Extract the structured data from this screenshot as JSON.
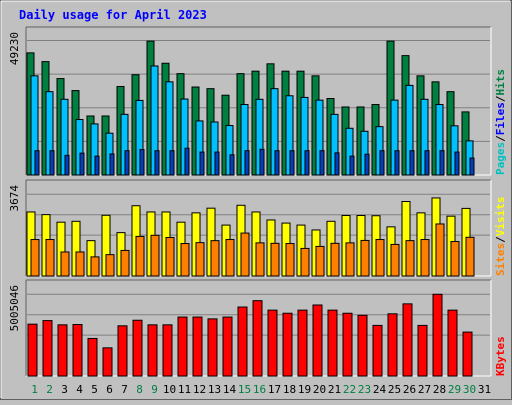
{
  "chart_data": {
    "type": "bar",
    "title": "Daily usage for April 2023",
    "categories": [
      "1",
      "2",
      "3",
      "4",
      "5",
      "6",
      "7",
      "8",
      "9",
      "10",
      "11",
      "12",
      "13",
      "14",
      "15",
      "16",
      "17",
      "18",
      "19",
      "20",
      "21",
      "22",
      "23",
      "24",
      "25",
      "26",
      "27",
      "28",
      "29",
      "30",
      "31"
    ],
    "weekend_days": [
      "1",
      "2",
      "8",
      "9",
      "15",
      "16",
      "22",
      "23",
      "29",
      "30"
    ],
    "panels": [
      {
        "name": "hits-files-pages",
        "max_label": "49230",
        "ymax": 49230,
        "ylabel_parts": [
          "Pages",
          "Files",
          "Hits"
        ],
        "ylabel_colors": [
          "#00c0c0",
          "#0000ff",
          "#008040"
        ],
        "series": [
          {
            "name": "Hits",
            "color": "#008040",
            "values": [
              44700,
              41500,
              35300,
              30900,
              21600,
              21600,
              32400,
              36700,
              49000,
              40900,
              37100,
              32200,
              31600,
              29200,
              37100,
              38000,
              40700,
              38000,
              38000,
              36300,
              28000,
              24900,
              24900,
              25800,
              49000,
              43700,
              36300,
              34100,
              30500,
              23100,
              0
            ]
          },
          {
            "name": "Files",
            "color": "#00c0ff",
            "values": [
              36300,
              30500,
              27700,
              20300,
              18700,
              15300,
              22200,
              27300,
              39900,
              34100,
              27800,
              19800,
              19400,
              18100,
              25800,
              27700,
              31600,
              29000,
              28400,
              27400,
              22200,
              17100,
              16000,
              17700,
              27400,
              32800,
              27700,
              25800,
              18000,
              12500,
              0
            ]
          },
          {
            "name": "Pages",
            "color": "#0040c0",
            "values": [
              8900,
              8900,
              7200,
              8000,
              6900,
              7700,
              8900,
              9300,
              8900,
              8900,
              9800,
              8400,
              8400,
              7400,
              8900,
              9400,
              8900,
              8900,
              8900,
              8900,
              8100,
              6900,
              7600,
              8900,
              8900,
              8900,
              8900,
              8900,
              8400,
              6200,
              0
            ]
          }
        ]
      },
      {
        "name": "visits-sites",
        "max_label": "3674",
        "ymax": 3674,
        "ylabel_parts": [
          "Sites",
          "Visits"
        ],
        "ylabel_colors": [
          "#ff8000",
          "#ffff00"
        ],
        "series": [
          {
            "name": "Visits",
            "color": "#ffff00",
            "values": [
              2880,
              2760,
              2420,
              2460,
              1590,
              2730,
              1950,
              3160,
              2880,
              2880,
              2420,
              2840,
              3050,
              2290,
              3180,
              2880,
              2520,
              2380,
              2290,
              2070,
              2460,
              2720,
              2720,
              2710,
              2210,
              3350,
              2840,
              3510,
              2690,
              3040,
              0
            ]
          },
          {
            "name": "Sites",
            "color": "#ff8000",
            "values": [
              1640,
              1640,
              1080,
              1080,
              860,
              960,
              1150,
              1780,
              1830,
              1730,
              1460,
              1500,
              1590,
              1640,
              1930,
              1490,
              1470,
              1460,
              1240,
              1330,
              1470,
              1490,
              1600,
              1640,
              1420,
              1590,
              1640,
              2340,
              1550,
              1740,
              0
            ]
          }
        ]
      },
      {
        "name": "kbytes",
        "max_label": "5005046",
        "ymax": 5005046,
        "ylabel_parts": [
          "KBytes"
        ],
        "ylabel_colors": [
          "#ff0000"
        ],
        "series": [
          {
            "name": "KBytes",
            "color": "#ff0000",
            "values": [
              3175000,
              3395000,
              3135000,
              3155000,
              2300000,
              1725000,
              3075000,
              3415000,
              3135000,
              3135000,
              3610000,
              3610000,
              3500000,
              3610000,
              4225000,
              4615000,
              4035000,
              3845000,
              4035000,
              4350000,
              4035000,
              3845000,
              3720000,
              3100000,
              3810000,
              4420000,
              3100000,
              5005046,
              4035000,
              2690000,
              0
            ]
          }
        ]
      }
    ]
  }
}
